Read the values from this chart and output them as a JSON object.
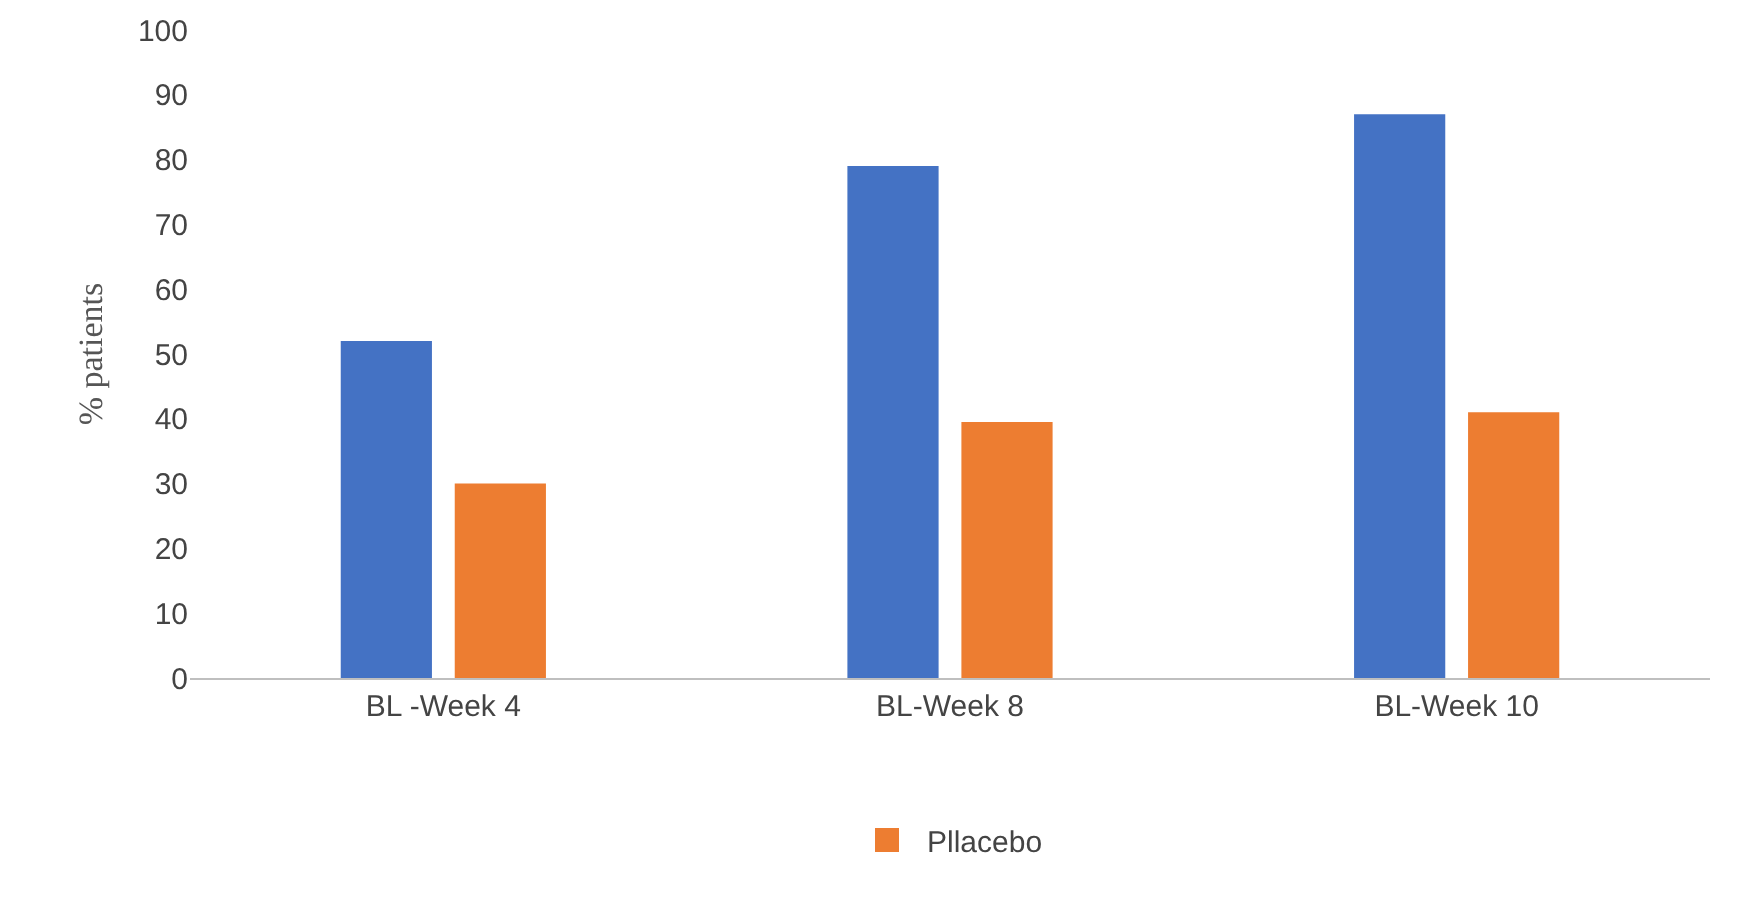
{
  "chart_data": {
    "type": "bar",
    "ylabel": "% patients",
    "categories": [
      "BL -Week 4",
      "BL-Week 8",
      "BL-Week 10"
    ],
    "series": [
      {
        "color": "#4472c4",
        "values": [
          52,
          79,
          87
        ]
      },
      {
        "name": "Pllacebo",
        "color": "#ed7d31",
        "values": [
          30,
          39.5,
          41
        ]
      }
    ],
    "ylim": [
      0,
      100
    ],
    "yticks": [
      0,
      10,
      20,
      30,
      40,
      50,
      60,
      70,
      80,
      90,
      100
    ],
    "grid": false,
    "legend": "bottom"
  }
}
